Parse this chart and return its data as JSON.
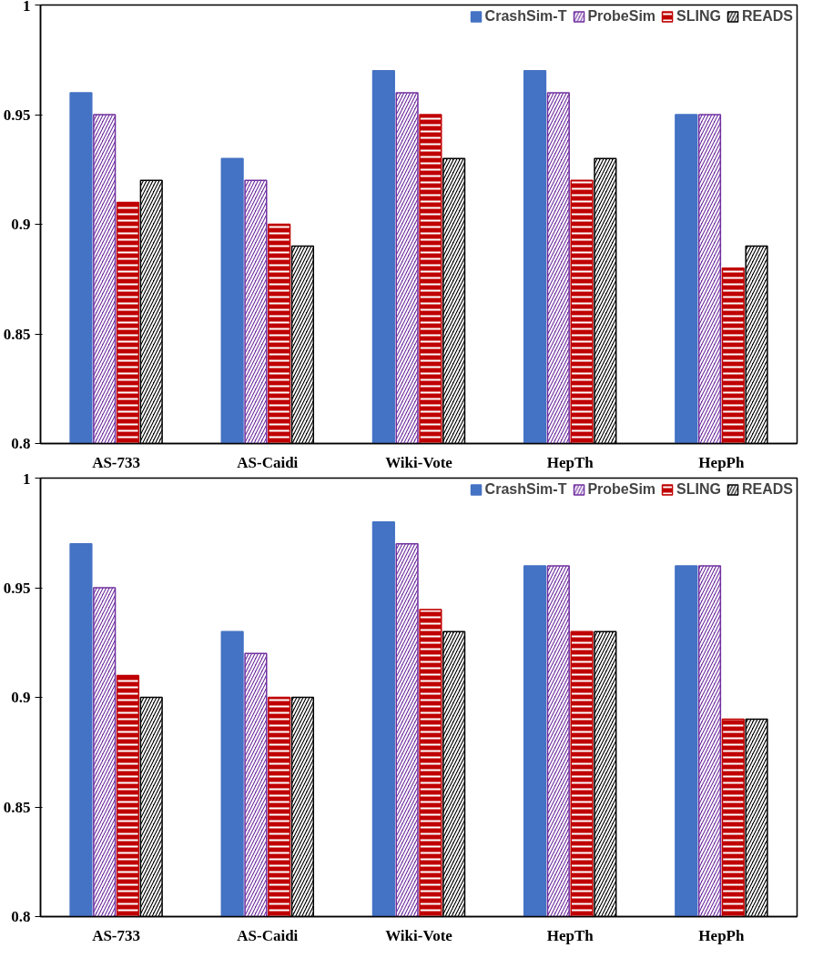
{
  "chart_data": [
    {
      "type": "bar",
      "categories": [
        "AS-733",
        "AS-Caidi",
        "Wiki-Vote",
        "HepTh",
        "HepPh"
      ],
      "ylim": [
        0.8,
        1
      ],
      "yticks": [
        0.8,
        0.85,
        0.9,
        0.95,
        1
      ],
      "grid": false,
      "legend": "top right",
      "series": [
        {
          "name": "CrashSim-T",
          "color": "#4472c4",
          "values": [
            0.96,
            0.93,
            0.97,
            0.97,
            0.95
          ]
        },
        {
          "name": "ProbeSim",
          "color": "#7030a0",
          "values": [
            0.95,
            0.92,
            0.96,
            0.96,
            0.95
          ]
        },
        {
          "name": "SLING",
          "color": "#c00000",
          "values": [
            0.91,
            0.9,
            0.95,
            0.92,
            0.88
          ]
        },
        {
          "name": "READS",
          "color": "#000000",
          "values": [
            0.92,
            0.89,
            0.93,
            0.93,
            0.89
          ]
        }
      ]
    },
    {
      "type": "bar",
      "categories": [
        "AS-733",
        "AS-Caidi",
        "Wiki-Vote",
        "HepTh",
        "HepPh"
      ],
      "ylim": [
        0.8,
        1
      ],
      "yticks": [
        0.8,
        0.85,
        0.9,
        0.95,
        1
      ],
      "grid": false,
      "legend": "top right",
      "series": [
        {
          "name": "CrashSim-T",
          "color": "#4472c4",
          "values": [
            0.97,
            0.93,
            0.98,
            0.96,
            0.96
          ]
        },
        {
          "name": "ProbeSim",
          "color": "#7030a0",
          "values": [
            0.95,
            0.92,
            0.97,
            0.96,
            0.96
          ]
        },
        {
          "name": "SLING",
          "color": "#c00000",
          "values": [
            0.91,
            0.9,
            0.94,
            0.93,
            0.89
          ]
        },
        {
          "name": "READS",
          "color": "#000000",
          "values": [
            0.9,
            0.9,
            0.93,
            0.93,
            0.89
          ]
        }
      ]
    }
  ]
}
